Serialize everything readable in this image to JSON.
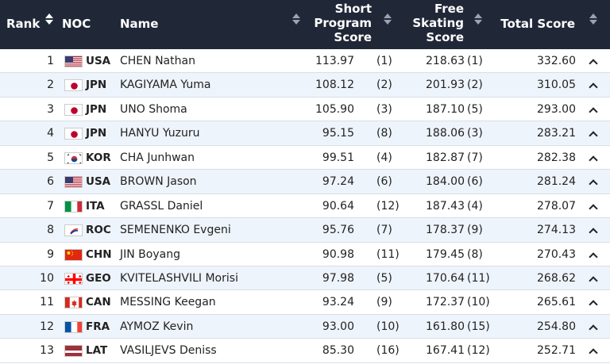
{
  "header": {
    "rank": "Rank",
    "noc": "NOC",
    "name": "Name",
    "short_program": [
      "Short",
      "Program",
      "Score"
    ],
    "free_skating": [
      "Free",
      "Skating",
      "Score"
    ],
    "total": "Total Score"
  },
  "rows": [
    {
      "rank": "1",
      "noc": "USA",
      "flag": "usa",
      "name": "CHEN Nathan",
      "sp": "113.97",
      "sp_rank": "(1)",
      "fs": "218.63",
      "fs_rank": "(1)",
      "total": "332.60"
    },
    {
      "rank": "2",
      "noc": "JPN",
      "flag": "jpn",
      "name": "KAGIYAMA Yuma",
      "sp": "108.12",
      "sp_rank": "(2)",
      "fs": "201.93",
      "fs_rank": "(2)",
      "total": "310.05"
    },
    {
      "rank": "3",
      "noc": "JPN",
      "flag": "jpn",
      "name": "UNO Shoma",
      "sp": "105.90",
      "sp_rank": "(3)",
      "fs": "187.10",
      "fs_rank": "(5)",
      "total": "293.00"
    },
    {
      "rank": "4",
      "noc": "JPN",
      "flag": "jpn",
      "name": "HANYU Yuzuru",
      "sp": "95.15",
      "sp_rank": "(8)",
      "fs": "188.06",
      "fs_rank": "(3)",
      "total": "283.21"
    },
    {
      "rank": "5",
      "noc": "KOR",
      "flag": "kor",
      "name": "CHA Junhwan",
      "sp": "99.51",
      "sp_rank": "(4)",
      "fs": "182.87",
      "fs_rank": "(7)",
      "total": "282.38"
    },
    {
      "rank": "6",
      "noc": "USA",
      "flag": "usa",
      "name": "BROWN Jason",
      "sp": "97.24",
      "sp_rank": "(6)",
      "fs": "184.00",
      "fs_rank": "(6)",
      "total": "281.24"
    },
    {
      "rank": "7",
      "noc": "ITA",
      "flag": "ita",
      "name": "GRASSL Daniel",
      "sp": "90.64",
      "sp_rank": "(12)",
      "fs": "187.43",
      "fs_rank": "(4)",
      "total": "278.07"
    },
    {
      "rank": "8",
      "noc": "ROC",
      "flag": "roc",
      "name": "SEMENENKO Evgeni",
      "sp": "95.76",
      "sp_rank": "(7)",
      "fs": "178.37",
      "fs_rank": "(9)",
      "total": "274.13"
    },
    {
      "rank": "9",
      "noc": "CHN",
      "flag": "chn",
      "name": "JIN Boyang",
      "sp": "90.98",
      "sp_rank": "(11)",
      "fs": "179.45",
      "fs_rank": "(8)",
      "total": "270.43"
    },
    {
      "rank": "10",
      "noc": "GEO",
      "flag": "geo",
      "name": "KVITELASHVILI Morisi",
      "sp": "97.98",
      "sp_rank": "(5)",
      "fs": "170.64",
      "fs_rank": "(11)",
      "total": "268.62"
    },
    {
      "rank": "11",
      "noc": "CAN",
      "flag": "can",
      "name": "MESSING Keegan",
      "sp": "93.24",
      "sp_rank": "(9)",
      "fs": "172.37",
      "fs_rank": "(10)",
      "total": "265.61"
    },
    {
      "rank": "12",
      "noc": "FRA",
      "flag": "fra",
      "name": "AYMOZ Kevin",
      "sp": "93.00",
      "sp_rank": "(10)",
      "fs": "161.80",
      "fs_rank": "(15)",
      "total": "254.80"
    },
    {
      "rank": "13",
      "noc": "LAT",
      "flag": "lat",
      "name": "VASILJEVS Deniss",
      "sp": "85.30",
      "sp_rank": "(16)",
      "fs": "167.41",
      "fs_rank": "(12)",
      "total": "252.71"
    }
  ],
  "colors": {
    "header_bg": "#202838",
    "row_alt": "#eef4fb"
  }
}
